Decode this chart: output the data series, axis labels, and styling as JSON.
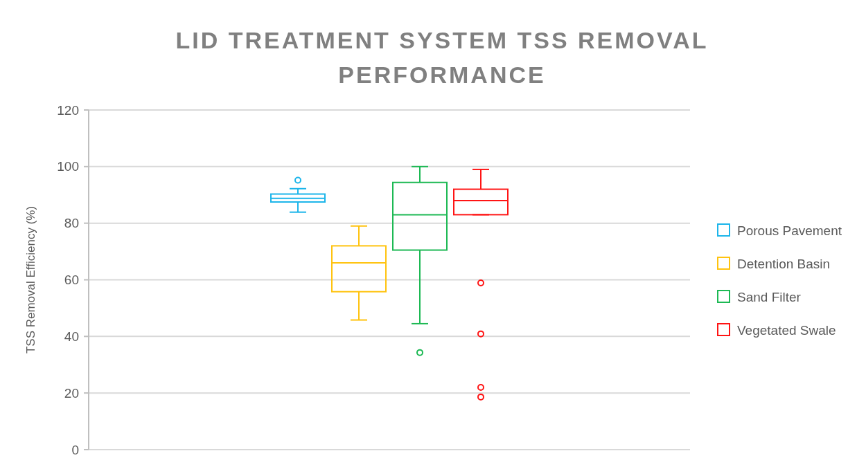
{
  "chart_data": {
    "type": "box",
    "title": "LID TREATMENT SYSTEM TSS REMOVAL PERFORMANCE",
    "ylabel": "TSS Removal Efficiency (%)",
    "categories": [
      null
    ],
    "ylim": [
      0,
      120
    ],
    "yticks": [
      0,
      20,
      40,
      60,
      80,
      100,
      120
    ],
    "grid": "y",
    "legend": "right",
    "series": [
      {
        "name": "Porous Pavement",
        "color": "#1cb5ea",
        "boxes": [
          {
            "low": 83.9,
            "q1": 87.5,
            "median": 88.8,
            "q3": 90.3,
            "high": 92.2,
            "outliers": [
              95.2
            ]
          }
        ]
      },
      {
        "name": "Detention Basin",
        "color": "#ffc30f",
        "boxes": [
          {
            "low": 45.8,
            "q1": 55.8,
            "median": 66,
            "q3": 72,
            "high": 79
          }
        ]
      },
      {
        "name": "Sand Filter",
        "color": "#1db954",
        "boxes": [
          {
            "low": 44.5,
            "q1": 70.5,
            "median": 83,
            "q3": 94.4,
            "high": 100,
            "outliers": [
              34.3
            ]
          }
        ]
      },
      {
        "name": "Vegetated Swale",
        "color": "#ff1414",
        "boxes": [
          {
            "low": 83,
            "q1": 83,
            "median": 88,
            "q3": 92,
            "high": 99,
            "outliers": [
              58.9,
              40.9,
              22,
              18.6
            ]
          }
        ]
      }
    ]
  }
}
